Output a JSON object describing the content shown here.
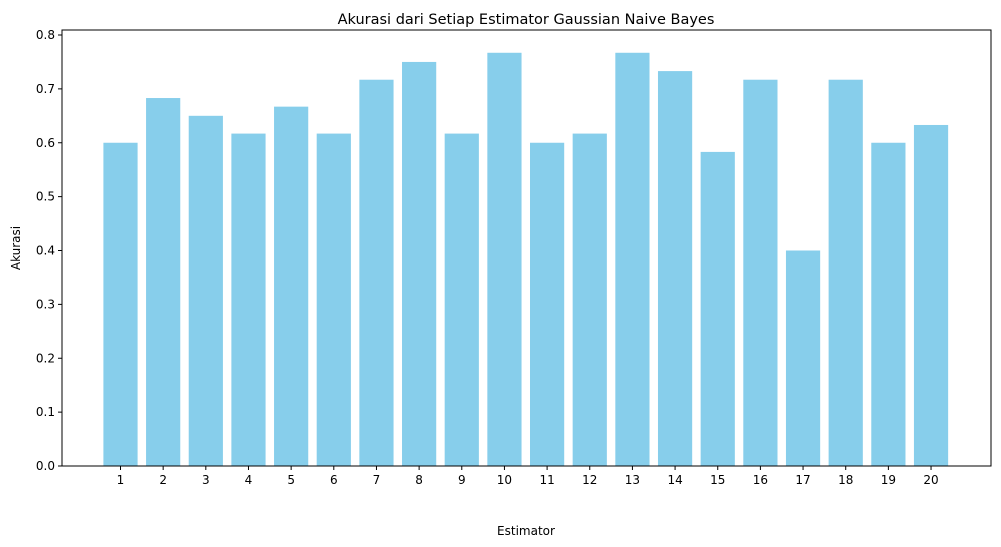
{
  "chart_data": {
    "type": "bar",
    "title": "Akurasi dari Setiap Estimator Gaussian Naive Bayes",
    "xlabel": "Estimator",
    "ylabel": "Akurasi",
    "categories": [
      "1",
      "2",
      "3",
      "4",
      "5",
      "6",
      "7",
      "8",
      "9",
      "10",
      "11",
      "12",
      "13",
      "14",
      "15",
      "16",
      "17",
      "18",
      "19",
      "20"
    ],
    "values": [
      0.6,
      0.683,
      0.65,
      0.617,
      0.667,
      0.617,
      0.717,
      0.75,
      0.617,
      0.767,
      0.6,
      0.617,
      0.767,
      0.733,
      0.583,
      0.717,
      0.4,
      0.717,
      0.6,
      0.633
    ],
    "ylim": [
      0,
      0.8
    ],
    "yticks": [
      "0.0",
      "0.1",
      "0.2",
      "0.3",
      "0.4",
      "0.5",
      "0.6",
      "0.7",
      "0.8"
    ],
    "bar_color": "#87ceeb",
    "grid": false,
    "legend": "none"
  }
}
